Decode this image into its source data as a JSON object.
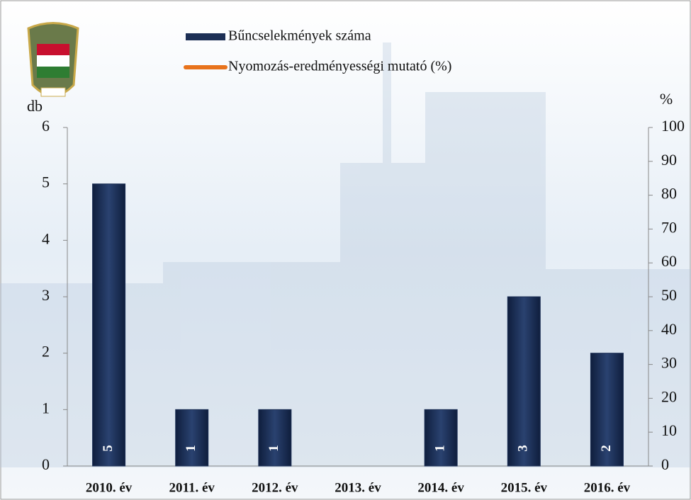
{
  "chart_data": {
    "type": "bar",
    "categories": [
      "2010. év",
      "2011. év",
      "2012. év",
      "2013. év",
      "2014. év",
      "2015. év",
      "2016. év"
    ],
    "series": [
      {
        "name": "Bűncselekmények száma",
        "color": "#1c2f55",
        "values": [
          5,
          1,
          1,
          null,
          1,
          3,
          2
        ]
      },
      {
        "name": "Nyomozás-eredményességi mutató (%)",
        "color": "#e8731c",
        "axis": "y2",
        "values": [
          null,
          null,
          null,
          null,
          null,
          null,
          null
        ]
      }
    ],
    "ylabel": "db",
    "y2label": "%",
    "ylim": [
      0,
      6
    ],
    "yticks": [
      0,
      1,
      2,
      3,
      4,
      5,
      6
    ],
    "y2lim": [
      0,
      100
    ],
    "y2ticks": [
      0,
      10,
      20,
      30,
      40,
      50,
      60,
      70,
      80,
      90,
      100
    ]
  }
}
